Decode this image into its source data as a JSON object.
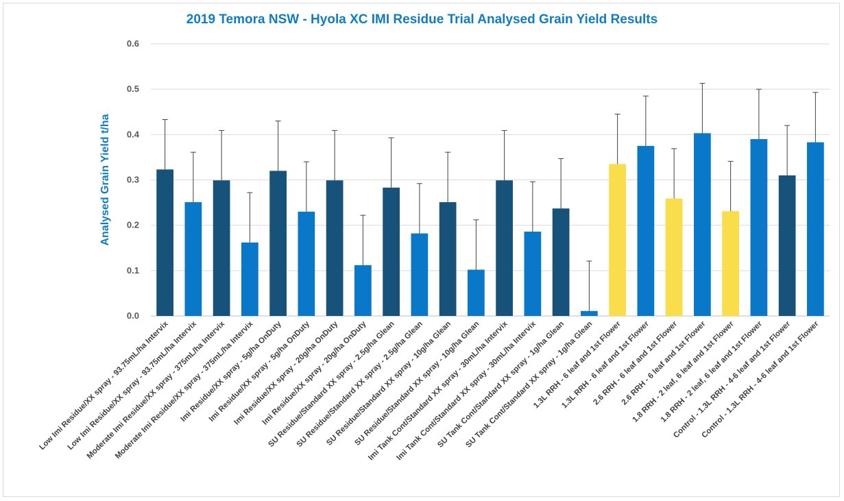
{
  "chart_data": {
    "type": "bar",
    "title": "2019 Temora NSW - Hyola XC IMI Residue Trial Analysed Grain Yield Results",
    "xlabel": "",
    "ylabel": "Analysed Grain Yield t/ha",
    "ylim": [
      0,
      0.6
    ],
    "yticks": [
      "0.0",
      "0.1",
      "0.2",
      "0.3",
      "0.4",
      "0.5",
      "0.6"
    ],
    "grid": true,
    "error_bar_half_width": 0.11,
    "categories": [
      "Low Imi Residue/XX spray - 93.75mL/ha Intervix",
      "Low Imi Residue/XX spray - 93.75mL/ha Intervix",
      "Moderate Imi Residue/XX spray - 375mL/ha Intervix",
      "Moderate Imi Residue/XX spray - 375mL/ha Intervix",
      "Imi Residue/XX spray - 5g/ha OnDuty",
      "Imi Residue/XX spray - 5g/ha OnDuty",
      "Imi Residue/XX spray - 20g/ha OnDuty",
      "Imi Residue/XX spray - 20g/ha OnDuty",
      "SU Residue/Standard XX spray - 2.5g/ha Glean",
      "SU Residue/Standard XX spray - 2.5g/ha Glean",
      "SU Residue/Standard XX spray - 10g/ha Glean",
      "SU Residue/Standard XX spray - 10g/ha Glean",
      "Imi Tank Cont/Standard XX spray - 30mL/ha Intervix",
      "Imi Tank Cont/Standard XX spray - 30mL/ha Intervix",
      "SU Tank Cont/Standard XX spray - 1g/ha Glean",
      "SU Tank Cont/Standard XX spray - 1g/ha Glean",
      "1.3L RRH - 6 leaf and 1st Flower",
      "1.3L RRH - 6 leaf and 1st Flower",
      "2.6 RRH - 6 leaf and 1st Flower",
      "2.6 RRH - 6 leaf and 1st Flower",
      "1.8 RRH - 2 leaf, 6 leaf and 1st Flower",
      "1.8 RRH - 2 leaf, 6 leaf and 1st Flower",
      "Control - 1.3L RRH - 4-6 leaf and 1st Flower",
      "Control - 1.3L RRH - 4-6 leaf and 1st Flower"
    ],
    "values": [
      0.323,
      0.251,
      0.299,
      0.162,
      0.32,
      0.23,
      0.299,
      0.112,
      0.283,
      0.182,
      0.251,
      0.102,
      0.299,
      0.186,
      0.237,
      0.011,
      0.335,
      0.375,
      0.259,
      0.403,
      0.231,
      0.39,
      0.31,
      0.383
    ],
    "bar_colors": [
      "#17527a",
      "#0a78c8",
      "#17527a",
      "#0a78c8",
      "#17527a",
      "#0a78c8",
      "#17527a",
      "#0a78c8",
      "#17527a",
      "#0a78c8",
      "#17527a",
      "#0a78c8",
      "#17527a",
      "#0a78c8",
      "#17527a",
      "#0a78c8",
      "#fadd4a",
      "#0a78c8",
      "#fadd4a",
      "#0a78c8",
      "#fadd4a",
      "#0a78c8",
      "#17527a",
      "#0a78c8"
    ]
  },
  "colors": {
    "title": "#0f7cc4",
    "ylabel": "#0f7cc4",
    "dark_blue": "#17527a",
    "blue": "#0a78c8",
    "yellow": "#fadd4a",
    "grid": "#d9d9d9",
    "axis": "#bfbfbf",
    "error_bar": "#404040"
  }
}
